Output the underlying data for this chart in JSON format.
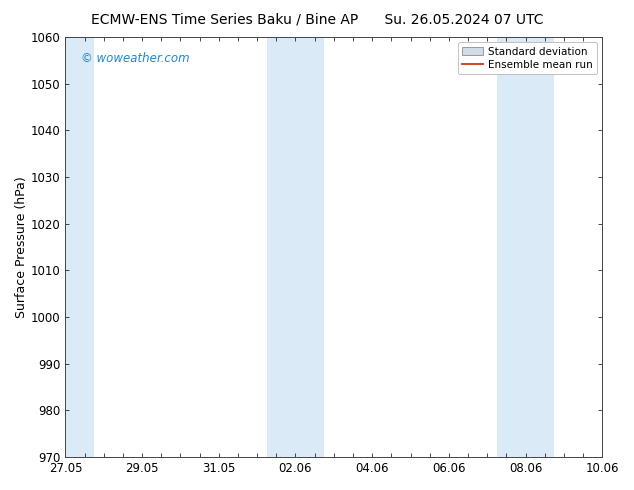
{
  "title_left": "ECMW-ENS Time Series Baku / Bine AP",
  "title_right": "Su. 26.05.2024 07 UTC",
  "ylabel": "Surface Pressure (hPa)",
  "ylim": [
    970,
    1060
  ],
  "yticks": [
    970,
    980,
    990,
    1000,
    1010,
    1020,
    1030,
    1040,
    1050,
    1060
  ],
  "xtick_labels": [
    "27.05",
    "29.05",
    "31.05",
    "02.06",
    "04.06",
    "06.06",
    "08.06",
    "10.06"
  ],
  "xtick_positions": [
    0,
    2,
    4,
    6,
    8,
    10,
    12,
    14
  ],
  "x_total": 14,
  "shaded_columns": [
    {
      "x_start": 0.0,
      "x_end": 0.75
    },
    {
      "x_start": 5.25,
      "x_end": 6.75
    },
    {
      "x_start": 11.25,
      "x_end": 12.75
    }
  ],
  "shaded_color": "#daeaf7",
  "watermark": "© woweather.com",
  "watermark_color": "#2288cc",
  "legend_std_label": "Standard deviation",
  "legend_mean_label": "Ensemble mean run",
  "legend_std_facecolor": "#d0dde8",
  "legend_std_edgecolor": "#999999",
  "legend_mean_color": "#cc2200",
  "bg_color": "#ffffff",
  "title_fontsize": 10,
  "tick_fontsize": 8.5,
  "ylabel_fontsize": 9
}
